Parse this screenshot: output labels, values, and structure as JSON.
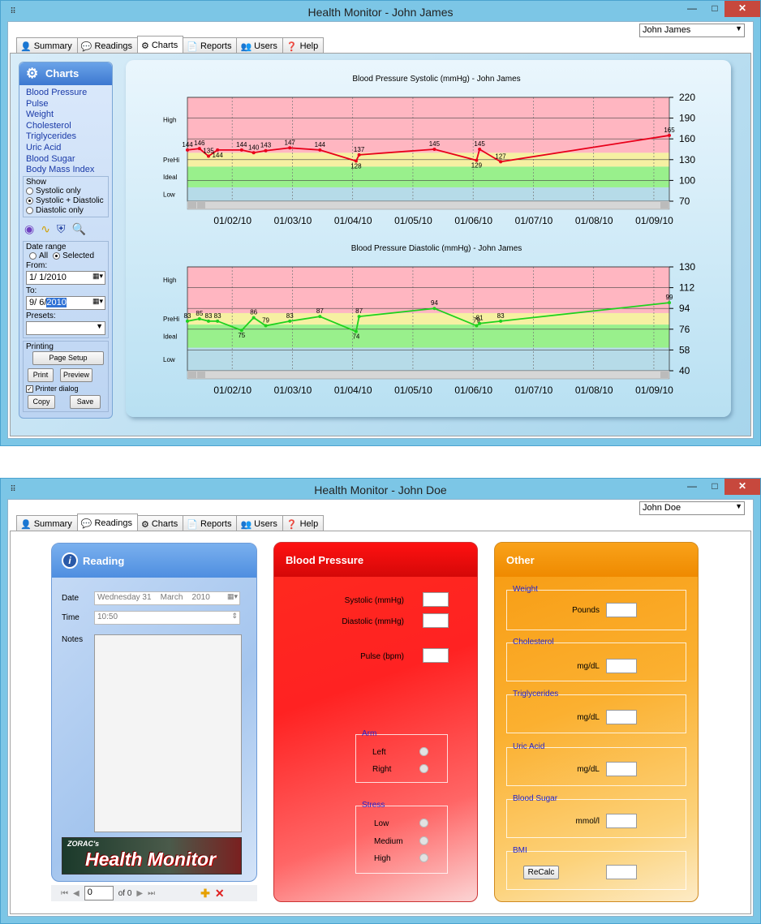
{
  "window1": {
    "title": "Health Monitor - John James",
    "user": "John James",
    "tabs": [
      "Summary",
      "Readings",
      "Charts",
      "Reports",
      "Users",
      "Help"
    ],
    "active_tab": "Charts",
    "sidebar": {
      "title": "Charts",
      "links": [
        "Blood Pressure",
        "Pulse",
        "Weight",
        "Cholesterol",
        "Triglycerides",
        "Uric Acid",
        "Blood Sugar",
        "Body Mass Index"
      ],
      "show": {
        "legend": "Show",
        "options": [
          "Systolic only",
          "Systolic + Diastolic",
          "Diastolic only"
        ],
        "selected": 1
      },
      "date_range": {
        "legend": "Date range",
        "all": "All",
        "selected": "Selected",
        "from_label": "From:",
        "from": "1/ 1/2010",
        "to_label": "To:",
        "to_prefix": "9/ 6/",
        "to_hl": "2010",
        "presets_label": "Presets:"
      },
      "printing": {
        "legend": "Printing",
        "page_setup": "Page Setup",
        "print": "Print",
        "preview": "Preview",
        "printer_dialog": "Printer dialog",
        "copy": "Copy",
        "save": "Save"
      }
    }
  },
  "chart_data": [
    {
      "type": "line",
      "title": "Blood Pressure Systolic (mmHg) - John James",
      "ylim": [
        70,
        220
      ],
      "yticks": [
        70,
        100,
        130,
        160,
        190,
        220
      ],
      "xticks": [
        "01/02/10",
        "01/03/10",
        "01/04/10",
        "01/05/10",
        "01/06/10",
        "01/07/10",
        "01/08/10",
        "01/09/10"
      ],
      "zones": [
        {
          "name": "Low",
          "from": 70,
          "to": 90,
          "color": "#b6dbe8"
        },
        {
          "name": "Ideal",
          "from": 90,
          "to": 120,
          "color": "#99f08c"
        },
        {
          "name": "PreHi",
          "from": 120,
          "to": 140,
          "color": "#f6f0a2"
        },
        {
          "name": "High",
          "from": 140,
          "to": 220,
          "color": "#ffb6c1"
        }
      ],
      "zone_labels": [
        "High",
        "PreHi",
        "Ideal",
        "Low"
      ],
      "color": "#e8001a",
      "points": [
        {
          "x": 0,
          "y": 144
        },
        {
          "x": 0.2,
          "y": 146
        },
        {
          "x": 0.35,
          "y": 135
        },
        {
          "x": 0.5,
          "y": 144
        },
        {
          "x": 0.9,
          "y": 144
        },
        {
          "x": 1.1,
          "y": 140
        },
        {
          "x": 1.3,
          "y": 143
        },
        {
          "x": 1.7,
          "y": 147
        },
        {
          "x": 2.2,
          "y": 144
        },
        {
          "x": 2.8,
          "y": 128
        },
        {
          "x": 2.85,
          "y": 137
        },
        {
          "x": 4.1,
          "y": 145
        },
        {
          "x": 4.8,
          "y": 129
        },
        {
          "x": 4.85,
          "y": 145
        },
        {
          "x": 5.2,
          "y": 127
        },
        {
          "x": 8.0,
          "y": 165
        }
      ]
    },
    {
      "type": "line",
      "title": "Blood Pressure Diastolic (mmHg) - John James",
      "ylim": [
        40,
        130
      ],
      "yticks": [
        40,
        58,
        76,
        94,
        112,
        130
      ],
      "xticks": [
        "01/02/10",
        "01/03/10",
        "01/04/10",
        "01/05/10",
        "01/06/10",
        "01/07/10",
        "01/08/10",
        "01/09/10"
      ],
      "zones": [
        {
          "name": "Low",
          "from": 40,
          "to": 60,
          "color": "#b6dbe8"
        },
        {
          "name": "Ideal",
          "from": 60,
          "to": 80,
          "color": "#99f08c"
        },
        {
          "name": "PreHi",
          "from": 80,
          "to": 90,
          "color": "#f6f0a2"
        },
        {
          "name": "High",
          "from": 90,
          "to": 130,
          "color": "#ffb6c1"
        }
      ],
      "zone_labels": [
        "High",
        "PreHi",
        "Ideal",
        "Low"
      ],
      "color": "#1ed21e",
      "points": [
        {
          "x": 0,
          "y": 83
        },
        {
          "x": 0.2,
          "y": 85
        },
        {
          "x": 0.35,
          "y": 83
        },
        {
          "x": 0.5,
          "y": 83
        },
        {
          "x": 0.9,
          "y": 75
        },
        {
          "x": 1.1,
          "y": 86
        },
        {
          "x": 1.3,
          "y": 79
        },
        {
          "x": 1.7,
          "y": 83
        },
        {
          "x": 2.2,
          "y": 87
        },
        {
          "x": 2.8,
          "y": 74
        },
        {
          "x": 2.85,
          "y": 87
        },
        {
          "x": 4.1,
          "y": 94
        },
        {
          "x": 4.8,
          "y": 79
        },
        {
          "x": 4.85,
          "y": 81
        },
        {
          "x": 5.2,
          "y": 83
        },
        {
          "x": 8.0,
          "y": 99
        }
      ]
    }
  ],
  "window2": {
    "title": "Health Monitor - John Doe",
    "user": "John Doe",
    "tabs": [
      "Summary",
      "Readings",
      "Charts",
      "Reports",
      "Users",
      "Help"
    ],
    "active_tab": "Readings",
    "reading": {
      "title": "Reading",
      "date_label": "Date",
      "date_value": "Wednesday 31    March    2010",
      "time_label": "Time",
      "time_value": "10:50",
      "notes_label": "Notes",
      "logo_top": "ZORAC's",
      "logo_main": "Health Monitor",
      "nav_page": "0",
      "nav_of": "of 0"
    },
    "bp": {
      "title": "Blood Pressure",
      "systolic": "Systolic (mmHg)",
      "diastolic": "Diastolic (mmHg)",
      "pulse": "Pulse (bpm)",
      "arm_legend": "Arm",
      "left": "Left",
      "right": "Right",
      "stress_legend": "Stress",
      "low": "Low",
      "medium": "Medium",
      "high": "High"
    },
    "other": {
      "title": "Other",
      "weight": "Weight",
      "pounds": "Pounds",
      "cholesterol": "Cholesterol",
      "mgdl1": "mg/dL",
      "triglycerides": "Triglycerides",
      "mgdl2": "mg/dL",
      "uric": "Uric Acid",
      "mgdl3": "mg/dL",
      "sugar": "Blood Sugar",
      "mmol": "mmol/l",
      "bmi": "BMI",
      "recalc": "ReCalc"
    }
  },
  "colors": {
    "frame": "#7cc6e6",
    "close": "#c7483d",
    "bp_red": "#ee1010",
    "other_orange": "#f7a316",
    "reading_blue": "#5b9ae6"
  }
}
